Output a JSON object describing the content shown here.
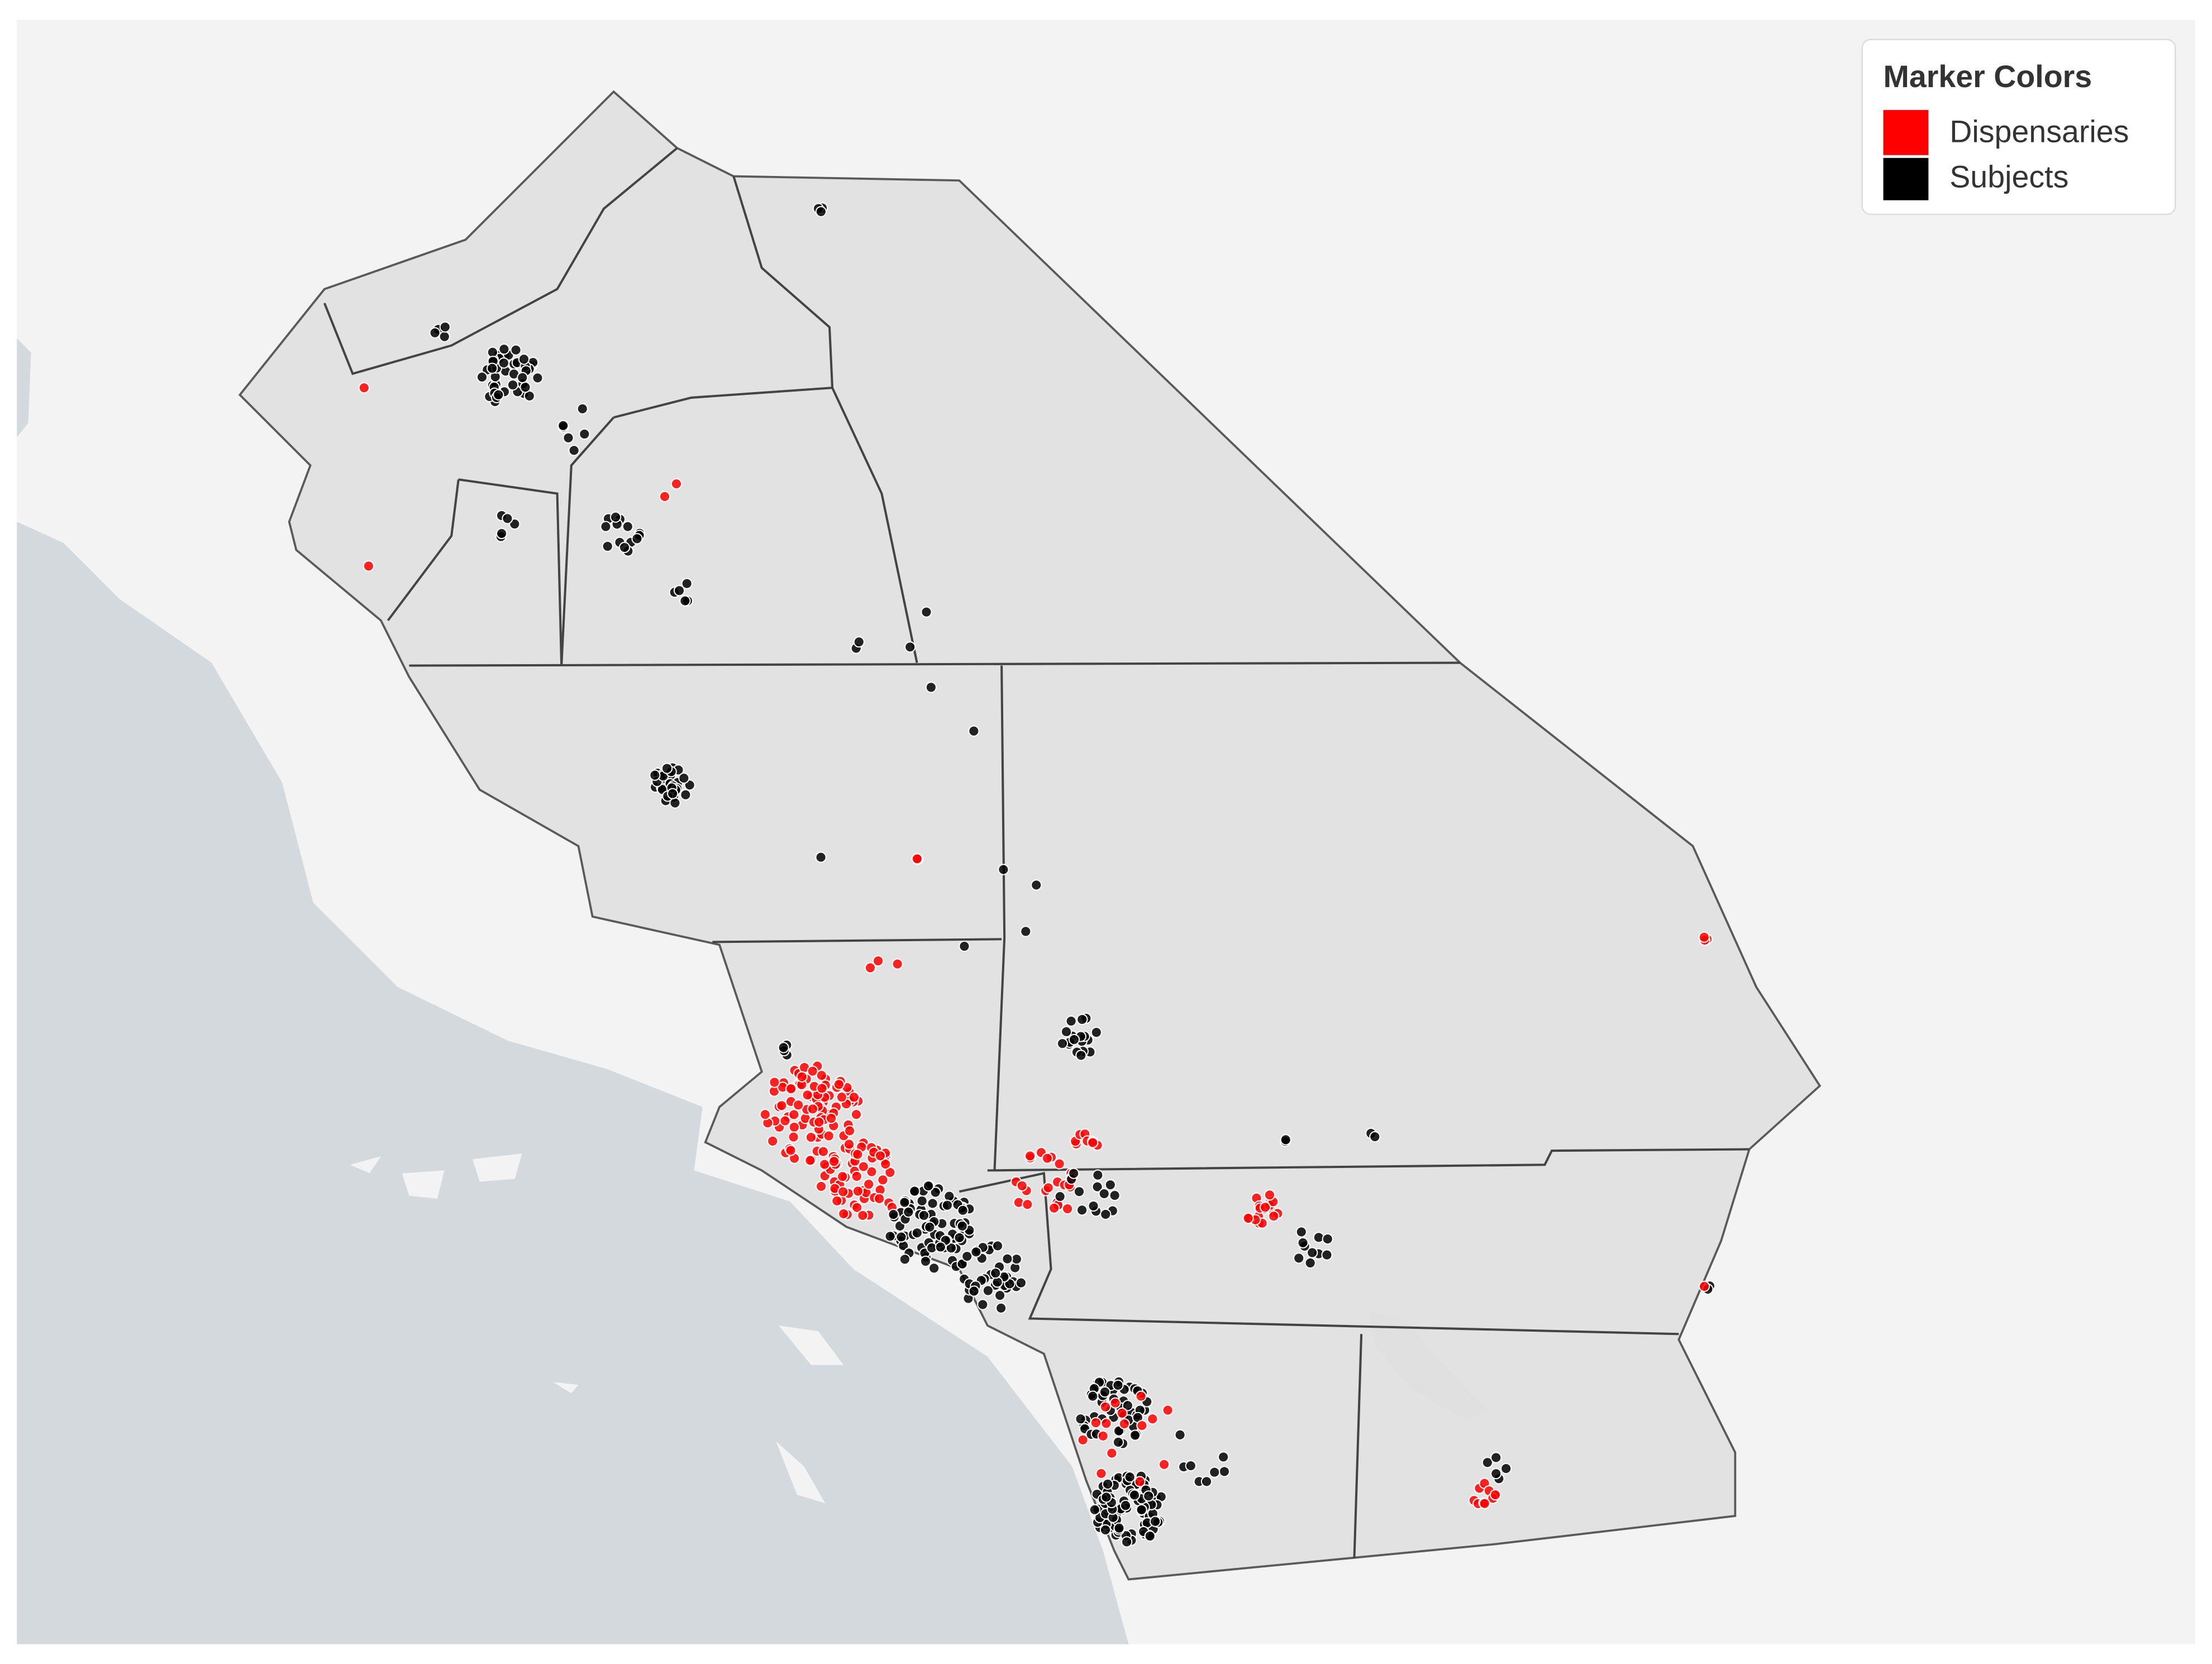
{
  "legend": {
    "title": "Marker Colors",
    "items": [
      {
        "label": "Dispensaries",
        "color": "#ff0000"
      },
      {
        "label": "Subjects",
        "color": "#000000"
      }
    ]
  }
}
